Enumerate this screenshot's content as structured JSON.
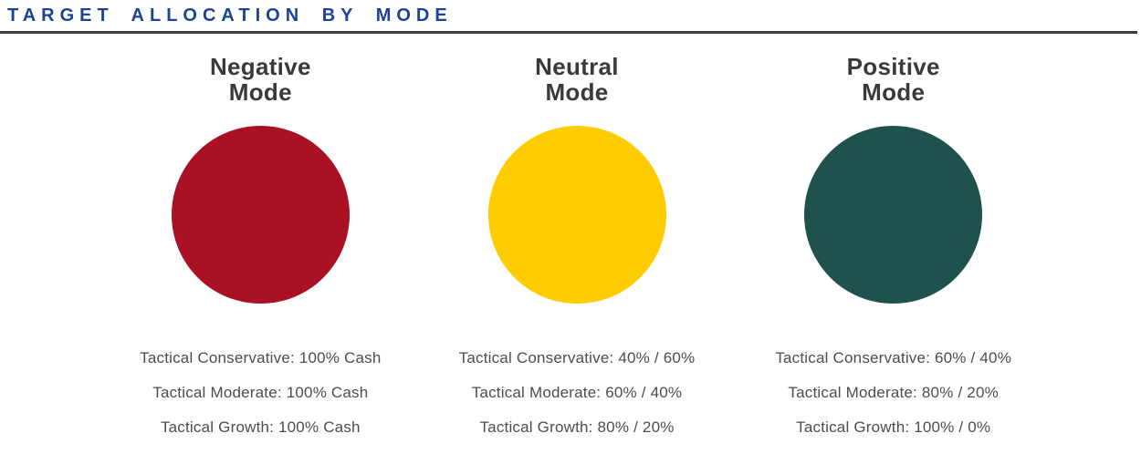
{
  "header": {
    "title": "TARGET ALLOCATION BY MODE"
  },
  "colors": {
    "title_blue": "#1b4398",
    "rule_gray": "#3f3f41",
    "heading_gray": "#3a3a3c",
    "body_gray": "#4d4d4f",
    "negative_red": "#ab1124",
    "neutral_yellow": "#ffcc00",
    "positive_green": "#20524d"
  },
  "modes": [
    {
      "name": "Negative Mode",
      "name_line1": "Negative",
      "name_line2": "Mode",
      "circle_color": "#ab1124",
      "allocations": [
        "Tactical Conservative: 100% Cash",
        "Tactical Moderate: 100% Cash",
        "Tactical Growth: 100% Cash"
      ]
    },
    {
      "name": "Neutral Mode",
      "name_line1": "Neutral",
      "name_line2": "Mode",
      "circle_color": "#ffcc00",
      "allocations": [
        "Tactical Conservative: 40% / 60%",
        "Tactical Moderate: 60% / 40%",
        "Tactical Growth: 80% / 20%"
      ]
    },
    {
      "name": "Positive Mode",
      "name_line1": "Positive",
      "name_line2": "Mode",
      "circle_color": "#20524d",
      "allocations": [
        "Tactical Conservative: 60% / 40%",
        "Tactical Moderate: 80% / 20%",
        "Tactical Growth: 100% / 0%"
      ]
    }
  ]
}
